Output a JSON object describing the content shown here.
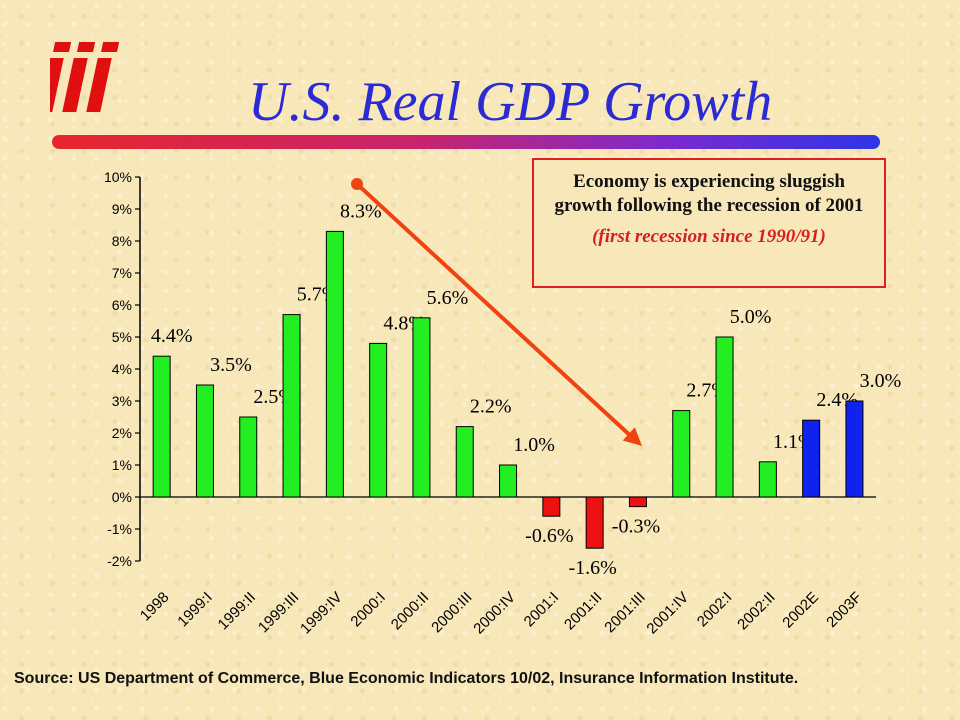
{
  "logo": {
    "text": "iii",
    "icon": "iii-logo-icon"
  },
  "title": "U.S. Real GDP Growth",
  "callout": {
    "text": "Economy is experiencing sluggish growth following the recession of 2001",
    "subtext": "(first recession since 1990/91)"
  },
  "source": "Source: US Department of Commerce, Blue Economic Indicators 10/02, Insurance Information Institute.",
  "colors": {
    "positive": "#22ee22",
    "negative": "#ee1111",
    "forecast": "#1122ee",
    "title": "#2b2bd6",
    "arrow": "#ee4411"
  },
  "chart_data": {
    "type": "bar",
    "categories": [
      "1998",
      "1999:I",
      "1999:II",
      "1999:III",
      "1999:IV",
      "2000:I",
      "2000:II",
      "2000:III",
      "2000:IV",
      "2001:I",
      "2001:II",
      "2001:III",
      "2001:IV",
      "2002:I",
      "2002:II",
      "2002E",
      "2003F"
    ],
    "values": [
      4.4,
      3.5,
      2.5,
      5.7,
      8.3,
      4.8,
      5.6,
      2.2,
      1.0,
      -0.6,
      -1.6,
      -0.3,
      2.7,
      5.0,
      1.1,
      2.4,
      3.0
    ],
    "value_labels": [
      "4.4%",
      "3.5%",
      "2.5%",
      "5.7%",
      "8.3%",
      "4.8%",
      "5.6%",
      "2.2%",
      "1.0%",
      "-0.6%",
      "-1.6%",
      "-0.3%",
      "2.7%",
      "5.0%",
      "1.1%",
      "2.4%",
      "3.0%"
    ],
    "forecast_categories": [
      "2002E",
      "2003F"
    ],
    "ylim": [
      -2,
      10
    ],
    "yticks": [
      -2,
      -1,
      0,
      1,
      2,
      3,
      4,
      5,
      6,
      7,
      8,
      9,
      10
    ],
    "ytick_labels": [
      "-2%",
      "-1%",
      "0%",
      "1%",
      "2%",
      "3%",
      "4%",
      "5%",
      "6%",
      "7%",
      "8%",
      "9%",
      "10%"
    ],
    "xlabel": "",
    "ylabel": "",
    "grid": false,
    "legend": "none"
  }
}
